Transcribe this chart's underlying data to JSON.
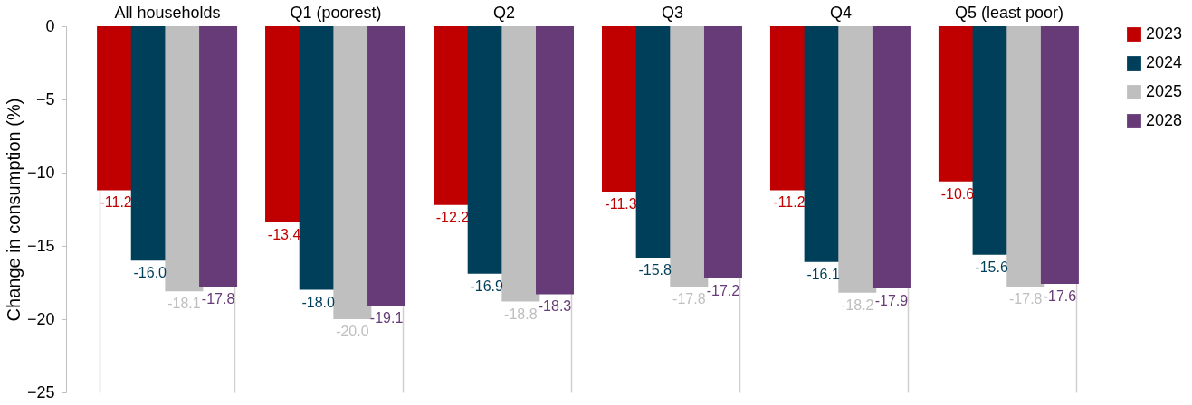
{
  "chart_data": {
    "type": "bar",
    "ylabel": "Change in consumption (%)",
    "categories": [
      "All households",
      "Q1 (poorest)",
      "Q2",
      "Q3",
      "Q4",
      "Q5 (least poor)"
    ],
    "series": [
      {
        "name": "2023",
        "color": "#c00000",
        "values": [
          -11.2,
          -13.4,
          -12.2,
          -11.3,
          -11.2,
          -10.6
        ],
        "value_labels": [
          "-11.2",
          "-13.4",
          "-12.2",
          "-11.3",
          "-11.2",
          "-10.6"
        ]
      },
      {
        "name": "2024",
        "color": "#003f5a",
        "values": [
          -16.0,
          -18.0,
          -16.9,
          -15.8,
          -16.1,
          -15.6
        ],
        "value_labels": [
          "-16.0",
          "-18.0",
          "-16.9",
          "-15.8",
          "-16.1",
          "-15.6"
        ]
      },
      {
        "name": "2025",
        "color": "#bfbfbf",
        "values": [
          -18.1,
          -20.0,
          -18.8,
          -17.8,
          -18.2,
          -17.8
        ],
        "value_labels": [
          "-18.1",
          "-20.0",
          "-18.8",
          "-17.8",
          "-18.2",
          "-17.8"
        ]
      },
      {
        "name": "2028",
        "color": "#673b78",
        "values": [
          -17.8,
          -19.1,
          -18.3,
          -17.2,
          -17.9,
          -17.6
        ],
        "value_labels": [
          "-17.8",
          "-19.1",
          "-18.3",
          "-17.2",
          "-17.9",
          "-17.6"
        ]
      }
    ],
    "ylim": [
      -25,
      0
    ],
    "yticks": [
      -25,
      -20,
      -15,
      -10,
      -5,
      0
    ],
    "grid": "x",
    "legend": "right"
  }
}
